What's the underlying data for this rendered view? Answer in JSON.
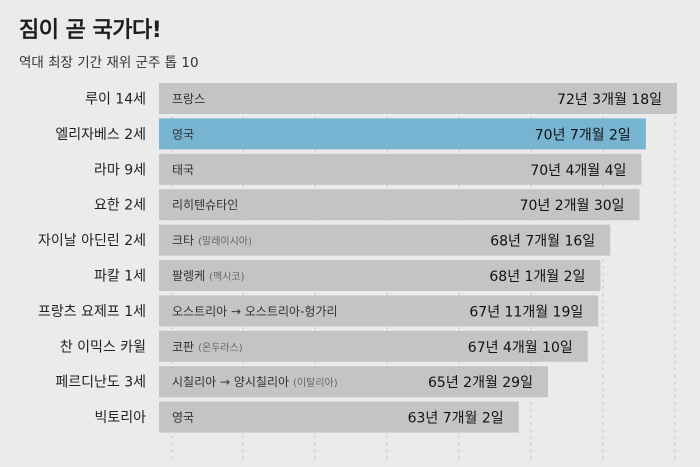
{
  "title": "짐이 곧 국가다!",
  "subtitle": "역대 최장 기간 재위 군주 톱 10",
  "colors": {
    "background": "#ebebeb",
    "bar": "#c4c4c4",
    "highlight": "#76b4d1"
  },
  "chart_data": {
    "type": "bar",
    "orientation": "horizontal",
    "title": "짐이 곧 국가다!",
    "subtitle": "역대 최장 기간 재위 군주 톱 10",
    "unit": "days",
    "highlight_index": 1,
    "grid": "dotted vertical",
    "rows": [
      {
        "name": "루이 14세",
        "country": "프랑스",
        "note": "",
        "label": "72년 3개월 18일",
        "value": 26407
      },
      {
        "name": "엘리자베스 2세",
        "country": "영국",
        "note": "",
        "label": "70년 7개월 2일",
        "value": 25781
      },
      {
        "name": "라마 9세",
        "country": "태국",
        "note": "",
        "label": "70년 4개월 4일",
        "value": 25692
      },
      {
        "name": "요한 2세",
        "country": "리히텐슈타인",
        "note": "",
        "label": "70년 2개월 30일",
        "value": 25655
      },
      {
        "name": "자이날 아딘린 2세",
        "country": "크타",
        "note": "(말레이시아)",
        "label": "68년 7개월 16일",
        "value": 25065
      },
      {
        "name": "파칼 1세",
        "country": "팔렝케",
        "note": "(멕시코)",
        "label": "68년 1개월 2일",
        "value": 24869
      },
      {
        "name": "프랑츠 요제프 1세",
        "country": "오스트리아 → 오스트리아-헝가리",
        "note": "",
        "label": "67년 11개월 19일",
        "value": 24825
      },
      {
        "name": "찬 이믹스 카윌",
        "country": "코판",
        "note": "(온두라스)",
        "label": "67년 4개월 10일",
        "value": 24614
      },
      {
        "name": "페르디난도 3세",
        "country": "시칠리아 → 양시칠리아",
        "note": "(이탈리아)",
        "label": "65년 2개월 29일",
        "value": 23815
      },
      {
        "name": "빅토리아",
        "country": "영국",
        "note": "",
        "label": "63년 7개월 2일",
        "value": 23226
      }
    ]
  }
}
